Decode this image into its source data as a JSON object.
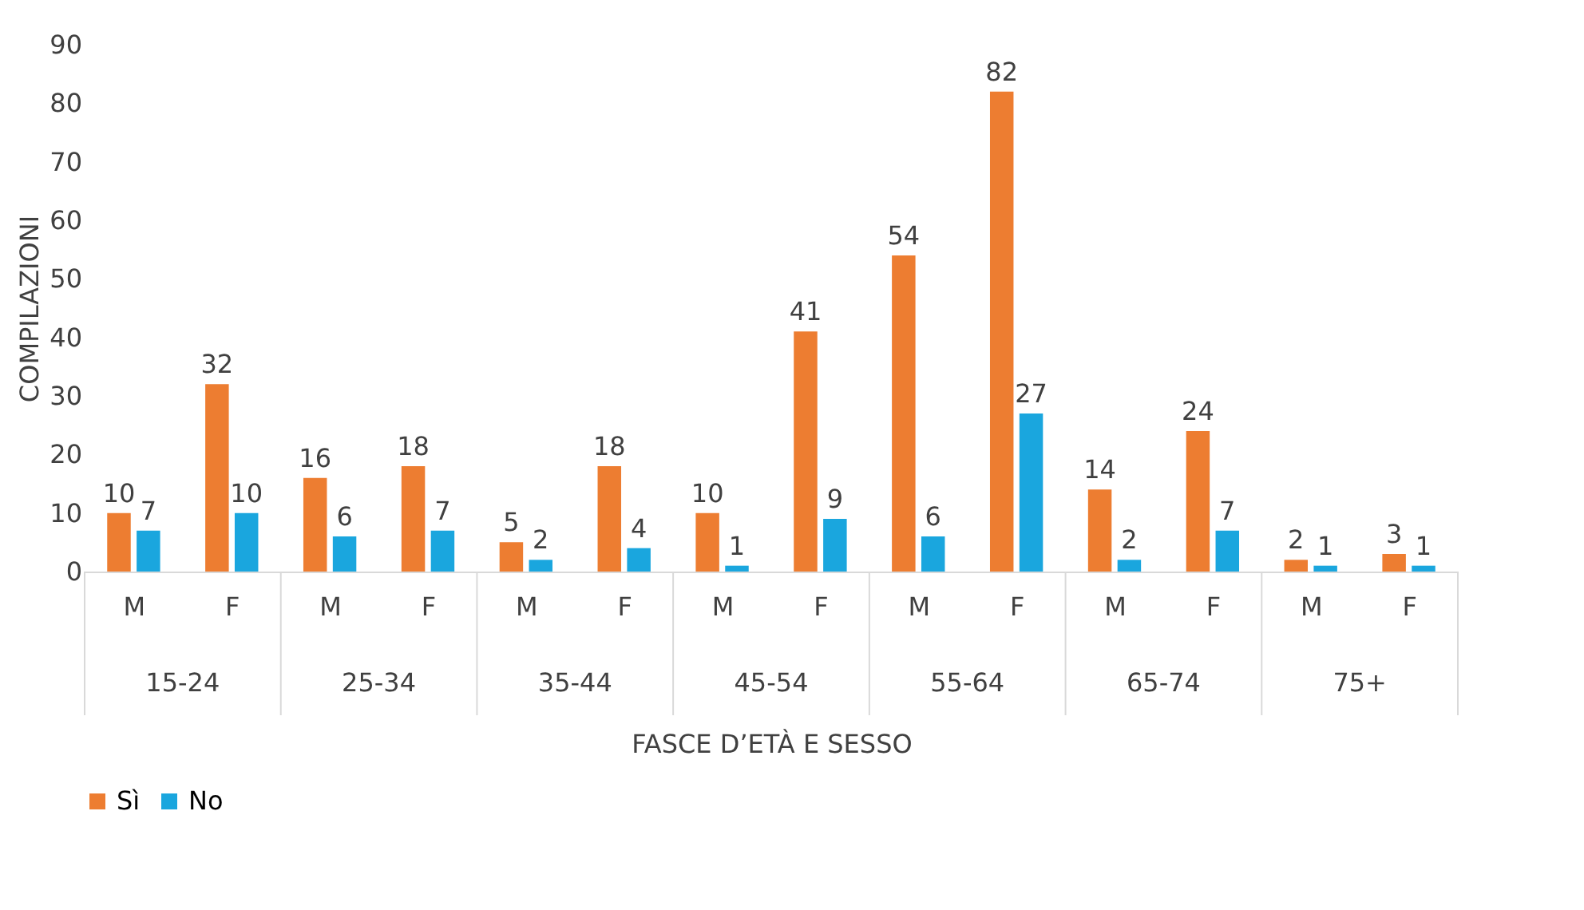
{
  "chart_data": {
    "type": "bar",
    "categories": [
      "M",
      "F",
      "M",
      "F",
      "M",
      "F",
      "M",
      "F",
      "M",
      "F",
      "M",
      "F",
      "M",
      "F"
    ],
    "series": [
      {
        "name": "Sì",
        "color": "#ed7d31",
        "values": [
          10,
          32,
          16,
          18,
          5,
          18,
          10,
          41,
          54,
          82,
          14,
          24,
          2,
          3
        ]
      },
      {
        "name": "No",
        "color": "#1aa6de",
        "values": [
          7,
          10,
          6,
          7,
          2,
          4,
          1,
          9,
          6,
          27,
          2,
          7,
          1,
          1
        ]
      }
    ],
    "annotations": [
      "15-24",
      "25-34",
      "35-44",
      "45-54",
      "55-64",
      "65-74",
      "75+"
    ],
    "xlabel": "FASCE D’ETÀ E SESSO",
    "ylabel": "COMPILAZIONI",
    "ylim": [
      0,
      90
    ],
    "yticks": [
      0,
      10,
      20,
      30,
      40,
      50,
      60,
      70,
      80,
      90
    ],
    "data_labels": true,
    "grid": false,
    "legend": "bottom"
  }
}
